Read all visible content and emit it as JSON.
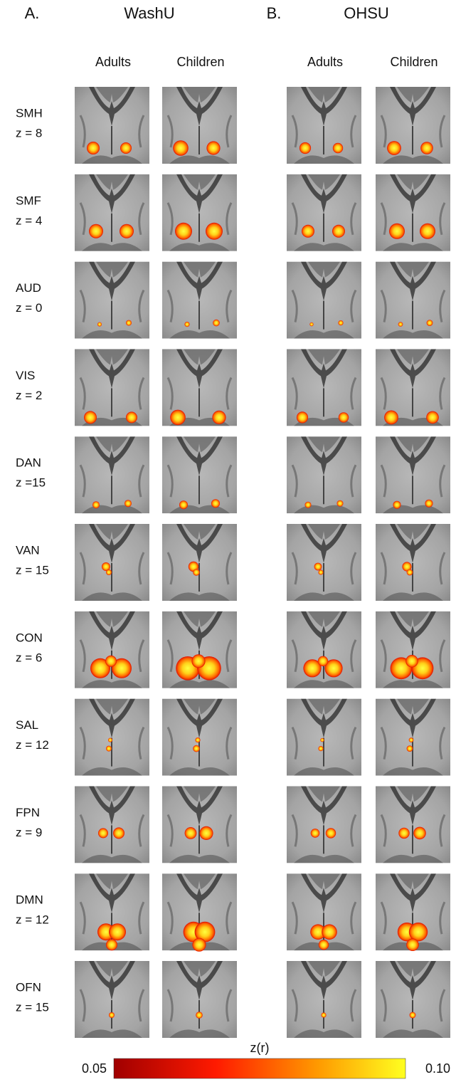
{
  "panels": [
    {
      "letter": "A.",
      "title": "WashU",
      "columns": [
        "Adults",
        "Children"
      ]
    },
    {
      "letter": "B.",
      "title": "OHSU",
      "columns": [
        "Adults",
        "Children"
      ]
    }
  ],
  "rows": [
    {
      "network": "SMH",
      "slice": "z = 8"
    },
    {
      "network": "SMF",
      "slice": "z = 4"
    },
    {
      "network": "AUD",
      "slice": "z = 0"
    },
    {
      "network": "VIS",
      "slice": "z = 2"
    },
    {
      "network": "DAN",
      "slice": "z =15"
    },
    {
      "network": "VAN",
      "slice": "z = 15"
    },
    {
      "network": "CON",
      "slice": "z = 6"
    },
    {
      "network": "SAL",
      "slice": "z = 12"
    },
    {
      "network": "FPN",
      "slice": "z = 9"
    },
    {
      "network": "DMN",
      "slice": "z = 12"
    },
    {
      "network": "OFN",
      "slice": "z = 15"
    }
  ],
  "colorbar": {
    "label": "z(r)",
    "min": "0.05",
    "max": "0.10"
  }
}
